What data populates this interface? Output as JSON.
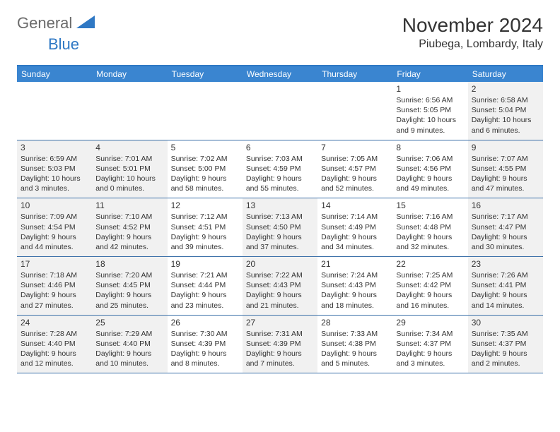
{
  "logo": {
    "general": "General",
    "blue": "Blue"
  },
  "title": "November 2024",
  "location": "Piubega, Lombardy, Italy",
  "colors": {
    "header_bar": "#3a85d0",
    "header_border": "#2f78c4",
    "week_border": "#3a6fa8",
    "shaded_bg": "#f1f1f1",
    "logo_gray": "#6b6b6b",
    "logo_blue": "#2f78c4",
    "text": "#333333",
    "background": "#ffffff"
  },
  "day_names": [
    "Sunday",
    "Monday",
    "Tuesday",
    "Wednesday",
    "Thursday",
    "Friday",
    "Saturday"
  ],
  "weeks": [
    [
      {
        "shaded": false
      },
      {
        "shaded": false
      },
      {
        "shaded": false
      },
      {
        "shaded": false
      },
      {
        "shaded": false
      },
      {
        "num": "1",
        "shaded": false,
        "sunrise": "Sunrise: 6:56 AM",
        "sunset": "Sunset: 5:05 PM",
        "daylight": "Daylight: 10 hours and 9 minutes."
      },
      {
        "num": "2",
        "shaded": true,
        "sunrise": "Sunrise: 6:58 AM",
        "sunset": "Sunset: 5:04 PM",
        "daylight": "Daylight: 10 hours and 6 minutes."
      }
    ],
    [
      {
        "num": "3",
        "shaded": true,
        "sunrise": "Sunrise: 6:59 AM",
        "sunset": "Sunset: 5:03 PM",
        "daylight": "Daylight: 10 hours and 3 minutes."
      },
      {
        "num": "4",
        "shaded": true,
        "sunrise": "Sunrise: 7:01 AM",
        "sunset": "Sunset: 5:01 PM",
        "daylight": "Daylight: 10 hours and 0 minutes."
      },
      {
        "num": "5",
        "shaded": false,
        "sunrise": "Sunrise: 7:02 AM",
        "sunset": "Sunset: 5:00 PM",
        "daylight": "Daylight: 9 hours and 58 minutes."
      },
      {
        "num": "6",
        "shaded": false,
        "sunrise": "Sunrise: 7:03 AM",
        "sunset": "Sunset: 4:59 PM",
        "daylight": "Daylight: 9 hours and 55 minutes."
      },
      {
        "num": "7",
        "shaded": false,
        "sunrise": "Sunrise: 7:05 AM",
        "sunset": "Sunset: 4:57 PM",
        "daylight": "Daylight: 9 hours and 52 minutes."
      },
      {
        "num": "8",
        "shaded": false,
        "sunrise": "Sunrise: 7:06 AM",
        "sunset": "Sunset: 4:56 PM",
        "daylight": "Daylight: 9 hours and 49 minutes."
      },
      {
        "num": "9",
        "shaded": true,
        "sunrise": "Sunrise: 7:07 AM",
        "sunset": "Sunset: 4:55 PM",
        "daylight": "Daylight: 9 hours and 47 minutes."
      }
    ],
    [
      {
        "num": "10",
        "shaded": true,
        "sunrise": "Sunrise: 7:09 AM",
        "sunset": "Sunset: 4:54 PM",
        "daylight": "Daylight: 9 hours and 44 minutes."
      },
      {
        "num": "11",
        "shaded": true,
        "sunrise": "Sunrise: 7:10 AM",
        "sunset": "Sunset: 4:52 PM",
        "daylight": "Daylight: 9 hours and 42 minutes."
      },
      {
        "num": "12",
        "shaded": false,
        "sunrise": "Sunrise: 7:12 AM",
        "sunset": "Sunset: 4:51 PM",
        "daylight": "Daylight: 9 hours and 39 minutes."
      },
      {
        "num": "13",
        "shaded": true,
        "sunrise": "Sunrise: 7:13 AM",
        "sunset": "Sunset: 4:50 PM",
        "daylight": "Daylight: 9 hours and 37 minutes."
      },
      {
        "num": "14",
        "shaded": false,
        "sunrise": "Sunrise: 7:14 AM",
        "sunset": "Sunset: 4:49 PM",
        "daylight": "Daylight: 9 hours and 34 minutes."
      },
      {
        "num": "15",
        "shaded": false,
        "sunrise": "Sunrise: 7:16 AM",
        "sunset": "Sunset: 4:48 PM",
        "daylight": "Daylight: 9 hours and 32 minutes."
      },
      {
        "num": "16",
        "shaded": true,
        "sunrise": "Sunrise: 7:17 AM",
        "sunset": "Sunset: 4:47 PM",
        "daylight": "Daylight: 9 hours and 30 minutes."
      }
    ],
    [
      {
        "num": "17",
        "shaded": true,
        "sunrise": "Sunrise: 7:18 AM",
        "sunset": "Sunset: 4:46 PM",
        "daylight": "Daylight: 9 hours and 27 minutes."
      },
      {
        "num": "18",
        "shaded": true,
        "sunrise": "Sunrise: 7:20 AM",
        "sunset": "Sunset: 4:45 PM",
        "daylight": "Daylight: 9 hours and 25 minutes."
      },
      {
        "num": "19",
        "shaded": false,
        "sunrise": "Sunrise: 7:21 AM",
        "sunset": "Sunset: 4:44 PM",
        "daylight": "Daylight: 9 hours and 23 minutes."
      },
      {
        "num": "20",
        "shaded": true,
        "sunrise": "Sunrise: 7:22 AM",
        "sunset": "Sunset: 4:43 PM",
        "daylight": "Daylight: 9 hours and 21 minutes."
      },
      {
        "num": "21",
        "shaded": false,
        "sunrise": "Sunrise: 7:24 AM",
        "sunset": "Sunset: 4:43 PM",
        "daylight": "Daylight: 9 hours and 18 minutes."
      },
      {
        "num": "22",
        "shaded": false,
        "sunrise": "Sunrise: 7:25 AM",
        "sunset": "Sunset: 4:42 PM",
        "daylight": "Daylight: 9 hours and 16 minutes."
      },
      {
        "num": "23",
        "shaded": true,
        "sunrise": "Sunrise: 7:26 AM",
        "sunset": "Sunset: 4:41 PM",
        "daylight": "Daylight: 9 hours and 14 minutes."
      }
    ],
    [
      {
        "num": "24",
        "shaded": true,
        "sunrise": "Sunrise: 7:28 AM",
        "sunset": "Sunset: 4:40 PM",
        "daylight": "Daylight: 9 hours and 12 minutes."
      },
      {
        "num": "25",
        "shaded": true,
        "sunrise": "Sunrise: 7:29 AM",
        "sunset": "Sunset: 4:40 PM",
        "daylight": "Daylight: 9 hours and 10 minutes."
      },
      {
        "num": "26",
        "shaded": false,
        "sunrise": "Sunrise: 7:30 AM",
        "sunset": "Sunset: 4:39 PM",
        "daylight": "Daylight: 9 hours and 8 minutes."
      },
      {
        "num": "27",
        "shaded": true,
        "sunrise": "Sunrise: 7:31 AM",
        "sunset": "Sunset: 4:39 PM",
        "daylight": "Daylight: 9 hours and 7 minutes."
      },
      {
        "num": "28",
        "shaded": false,
        "sunrise": "Sunrise: 7:33 AM",
        "sunset": "Sunset: 4:38 PM",
        "daylight": "Daylight: 9 hours and 5 minutes."
      },
      {
        "num": "29",
        "shaded": false,
        "sunrise": "Sunrise: 7:34 AM",
        "sunset": "Sunset: 4:37 PM",
        "daylight": "Daylight: 9 hours and 3 minutes."
      },
      {
        "num": "30",
        "shaded": true,
        "sunrise": "Sunrise: 7:35 AM",
        "sunset": "Sunset: 4:37 PM",
        "daylight": "Daylight: 9 hours and 2 minutes."
      }
    ]
  ]
}
